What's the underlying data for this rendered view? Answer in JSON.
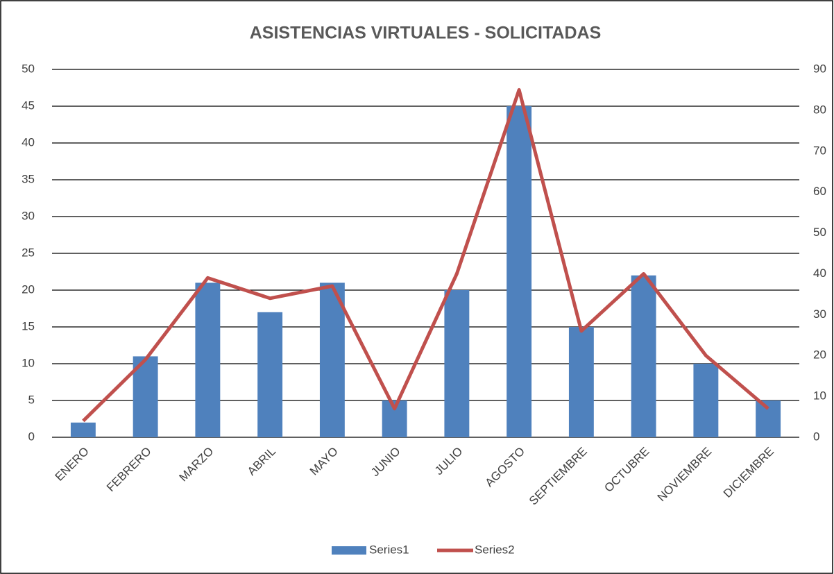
{
  "chart_data": {
    "type": "bar-line",
    "title": "ASISTENCIAS VIRTUALES - SOLICITADAS",
    "categories": [
      "ENERO",
      "FEBRERO",
      "MARZO",
      "ABRIL",
      "MAYO",
      "JUNIO",
      "JULIO",
      "AGOSTO",
      "SEPTIEMBRE",
      "OCTUBRE",
      "NOVIEMBRE",
      "DICIEMBRE"
    ],
    "series": [
      {
        "name": "Series1",
        "type": "bar",
        "color": "#4f81bd",
        "values": [
          2,
          11,
          21,
          17,
          21,
          5,
          20,
          45,
          15,
          22,
          10,
          5
        ]
      },
      {
        "name": "Series2",
        "type": "line",
        "axis": "y2",
        "color": "#c0504d",
        "values": [
          4,
          19,
          39,
          34,
          37,
          7,
          40,
          85,
          26,
          40,
          20,
          7
        ]
      }
    ],
    "ylim": [
      0,
      50
    ],
    "yticks": [
      0,
      5,
      10,
      15,
      20,
      25,
      30,
      35,
      40,
      45,
      50
    ],
    "y2lim": [
      0,
      90
    ],
    "y2ticks": [
      0,
      10,
      20,
      30,
      40,
      50,
      60,
      70,
      80,
      90
    ],
    "grid": true,
    "legend": "bottom"
  }
}
